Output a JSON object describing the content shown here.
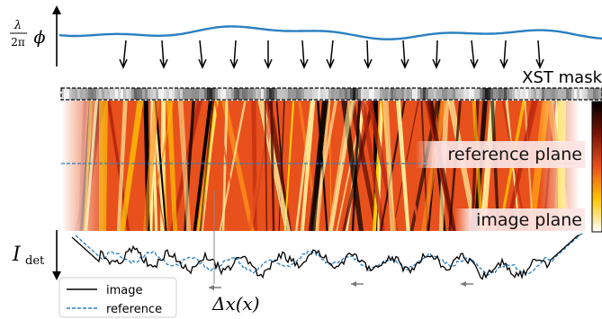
{
  "labels": {
    "phase_prefix_num": "λ",
    "phase_prefix_den": "2π",
    "phase_symbol": "ϕ",
    "mask_label": "XST mask",
    "reference_plane": "reference plane",
    "image_plane": "image plane",
    "intensity_I": "I",
    "intensity_sub": "det",
    "displacement": "Δx(x)"
  },
  "legend": {
    "image": "image",
    "reference": "reference"
  },
  "colors": {
    "phase_wave": "#2a7fc0",
    "reference_line": "#2a7fc0",
    "image_line": "#000000",
    "colormap": [
      "#ffffff",
      "#fff3a0",
      "#ffd000",
      "#ff8c1a",
      "#e8501c",
      "#b8260e",
      "#5a0c04",
      "#000000"
    ]
  },
  "icons": {
    "arrow": "down-arrow-icon"
  }
}
